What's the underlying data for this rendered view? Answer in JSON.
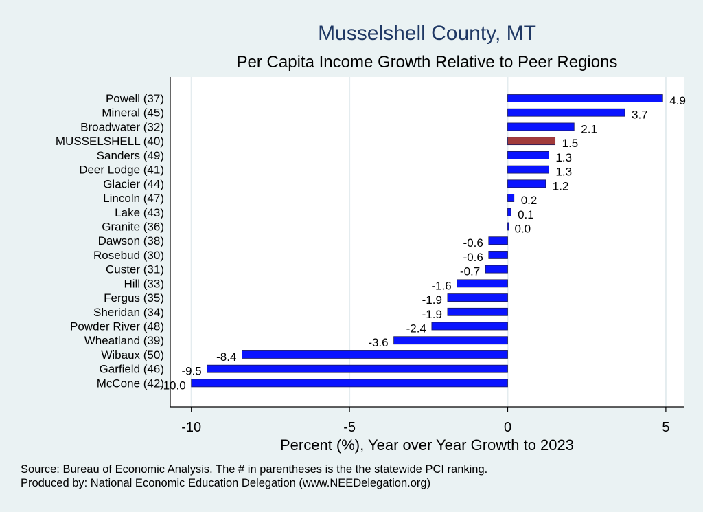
{
  "chart_data": {
    "type": "bar",
    "orientation": "horizontal",
    "title": "Musselshell County, MT",
    "subtitle": "Per Capita Income Growth Relative to Peer Regions",
    "xlabel": "Percent (%), Year over Year Growth to 2023",
    "ylabel": "",
    "xlim": [
      -10.5,
      5.6
    ],
    "xticks": [
      -10,
      -5,
      0,
      5
    ],
    "xtick_labels": [
      "-10",
      "-5",
      "0",
      "5"
    ],
    "grid": true,
    "categories": [
      "Powell (37)",
      "Mineral (45)",
      "Broadwater (32)",
      "MUSSELSHELL (40)",
      "Sanders (49)",
      "Deer Lodge (41)",
      "Glacier (44)",
      "Lincoln (47)",
      "Lake (43)",
      "Granite (36)",
      "Dawson (38)",
      "Rosebud (30)",
      "Custer (31)",
      "Hill (33)",
      "Fergus (35)",
      "Sheridan (34)",
      "Powder River (48)",
      "Wheatland (39)",
      "Wibaux (50)",
      "Garfield (46)",
      "McCone (42)"
    ],
    "values": [
      4.9,
      3.7,
      2.1,
      1.5,
      1.3,
      1.3,
      1.2,
      0.2,
      0.1,
      0.0,
      -0.6,
      -0.6,
      -0.7,
      -1.6,
      -1.9,
      -1.9,
      -2.4,
      -3.6,
      -8.4,
      -9.5,
      -10.0
    ],
    "value_labels": [
      "4.9",
      "3.7",
      "2.1",
      "1.5",
      "1.3",
      "1.3",
      "1.2",
      "0.2",
      "0.1",
      "0.0",
      "-0.6",
      "-0.6",
      "-0.7",
      "-1.6",
      "-1.9",
      "-1.9",
      "-2.4",
      "-3.6",
      "-8.4",
      "-9.5",
      "-10.0"
    ],
    "highlight": "MUSSELSHELL (40)",
    "colors": {
      "bar": "#0a14ff",
      "highlight": "#a23b3b",
      "bar_edge": "#1a1a5e",
      "title": "#1f3864",
      "grid": "#ffffff",
      "background": "#eaf2f3",
      "plot_background": "#ffffff"
    }
  },
  "footnotes": {
    "source": "Source: Bureau of Economic Analysis. The # in parentheses is the the statewide PCI ranking.",
    "producer": "Produced by: National Economic Education Delegation (www.NEEDelegation.org)"
  }
}
